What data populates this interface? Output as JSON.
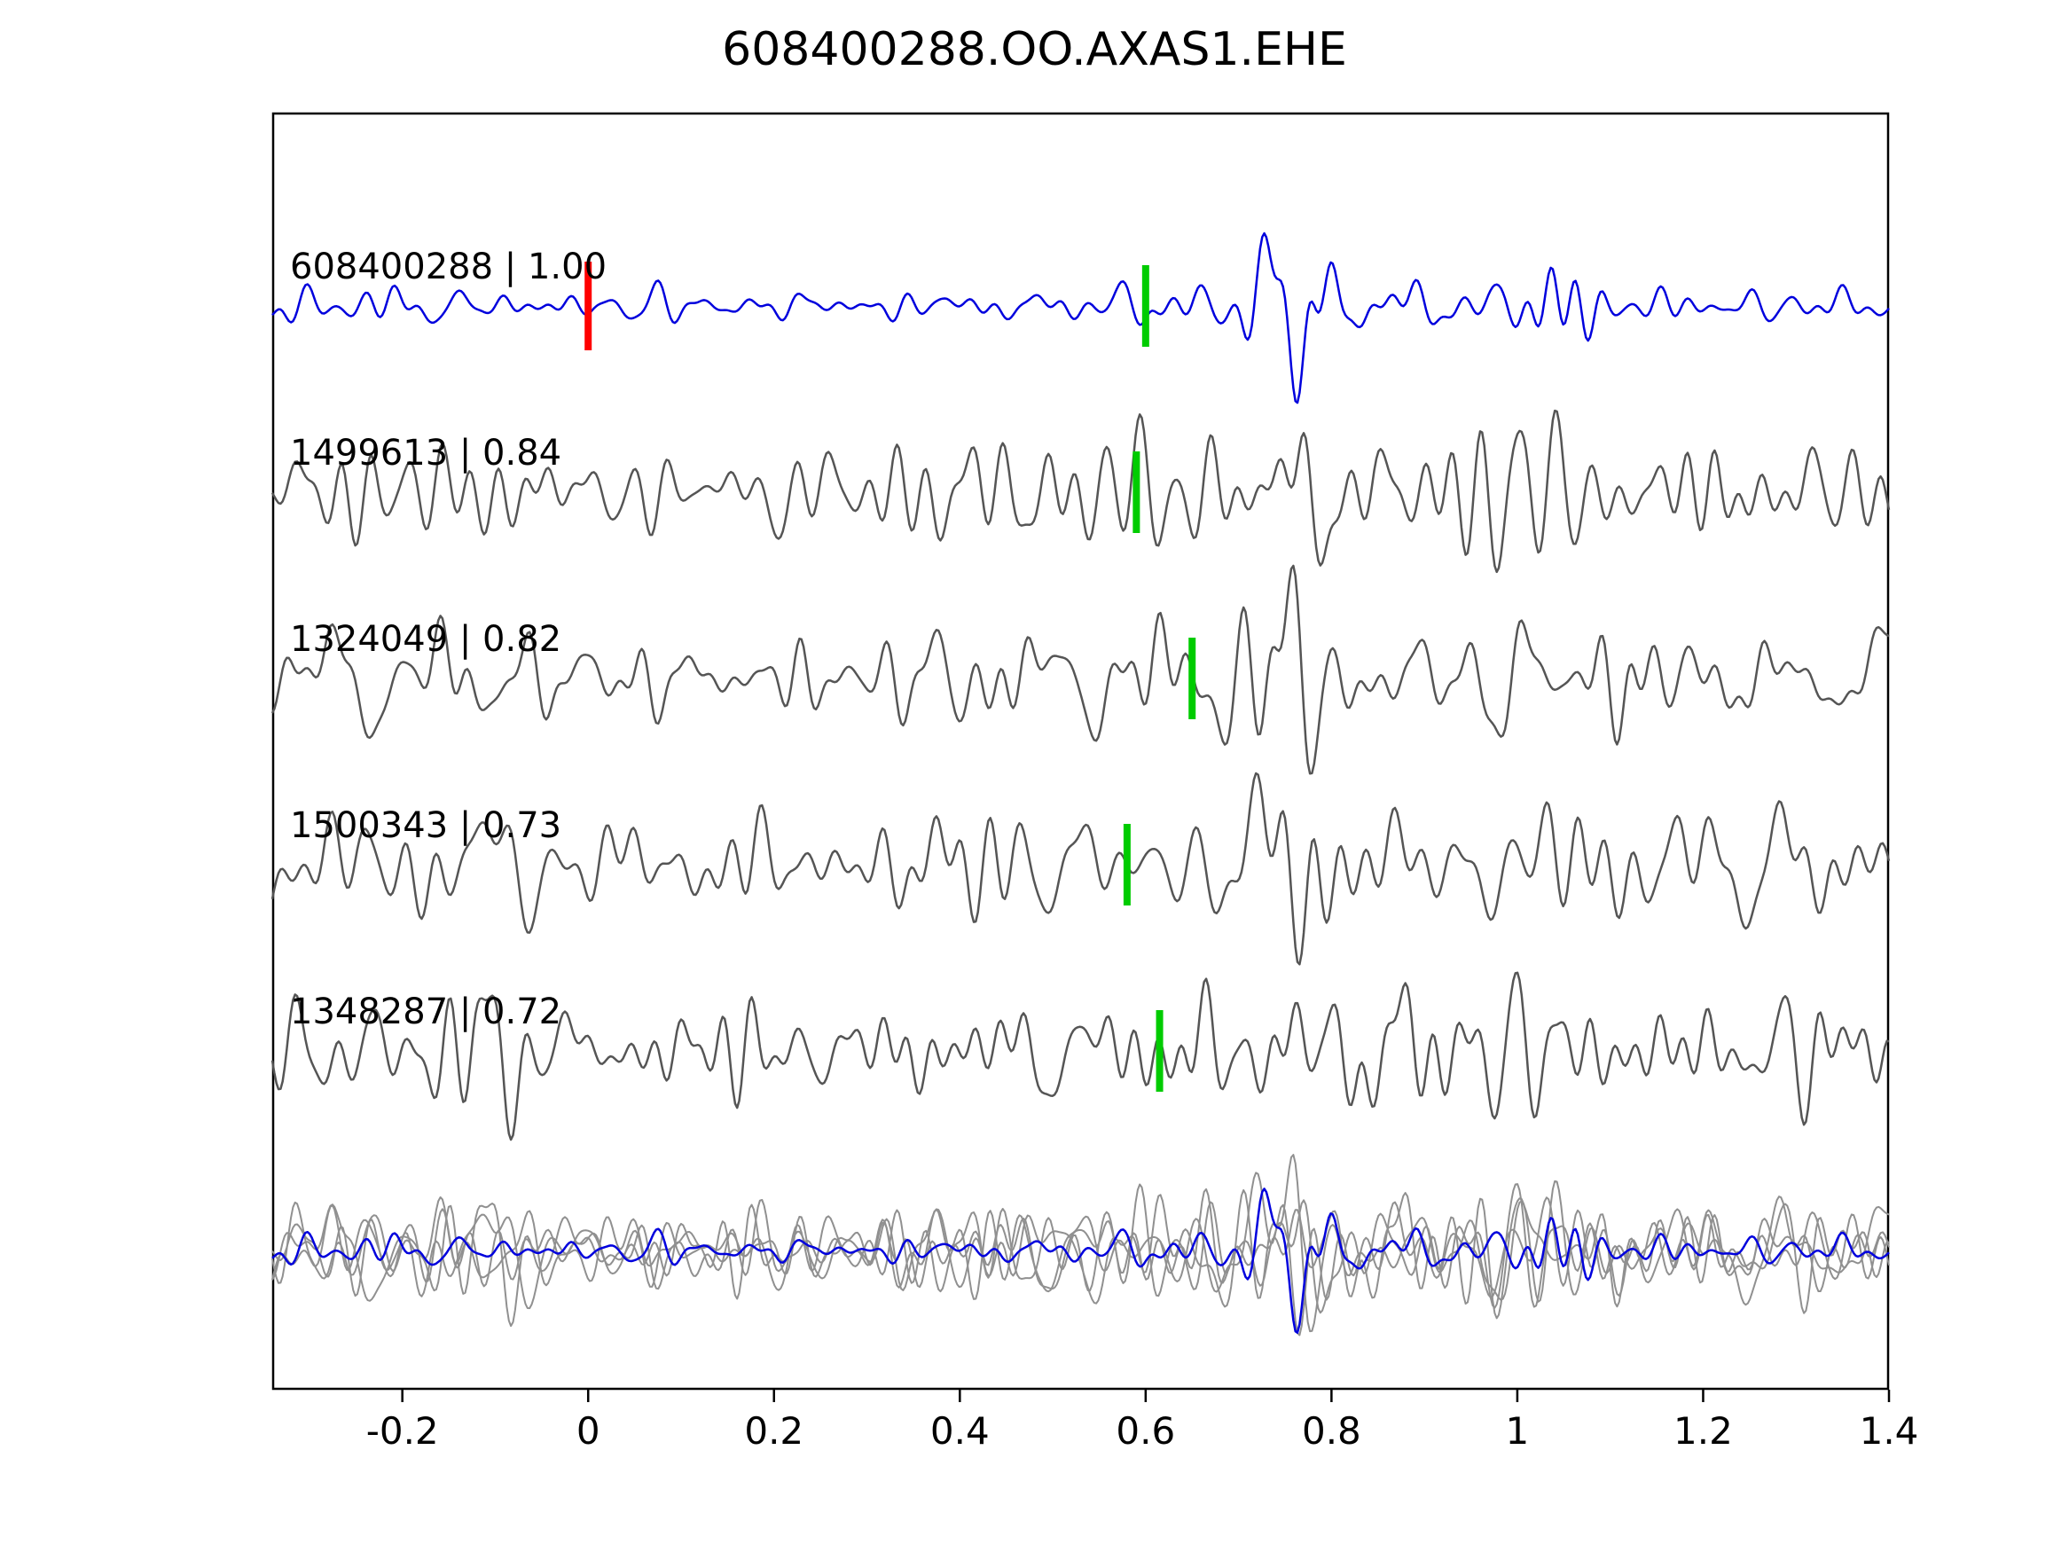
{
  "title": "608400288.OO.AXAS1.EHE",
  "chart_data": {
    "type": "line",
    "title": "608400288.OO.AXAS1.EHE",
    "subtitle": "",
    "xlabel": "",
    "ylabel": "",
    "grid": false,
    "legend": "none",
    "xlim": [
      -0.34,
      1.4
    ],
    "x_ticks": [
      {
        "v": -0.2,
        "label": "-0.2"
      },
      {
        "v": 0.0,
        "label": "0"
      },
      {
        "v": 0.2,
        "label": "0.2"
      },
      {
        "v": 0.4,
        "label": "0.4"
      },
      {
        "v": 0.6,
        "label": "0.6"
      },
      {
        "v": 0.8,
        "label": "0.8"
      },
      {
        "v": 1.0,
        "label": "1"
      },
      {
        "v": 1.2,
        "label": "1.2"
      },
      {
        "v": 1.4,
        "label": "1.4"
      }
    ],
    "colors": {
      "reference_trace": "#0000dd",
      "match_trace": "#555555",
      "overlay_gray": "#909090",
      "pick_marker": "#00cc00",
      "reference_pick_marker": "#ff0000",
      "axes_border": "#000000"
    },
    "traces": [
      {
        "id": "608400288",
        "correlation": "1.00",
        "label": "608400288 | 1.00",
        "color": "#0000dd",
        "pick_x": 0.6,
        "pick_color": "#00cc00",
        "ref_pick_x": 0.0,
        "ref_pick_color": "#ff0000",
        "seed": 911,
        "base_amp": 18,
        "bursts": [
          {
            "center": 0.78,
            "amp": 85,
            "sigma": 0.05
          },
          {
            "center": 1.05,
            "amp": 48,
            "sigma": 0.045
          }
        ]
      },
      {
        "id": "1499613",
        "correlation": "0.84",
        "label": "1499613 | 0.84",
        "color": "#555555",
        "pick_x": 0.59,
        "pick_color": "#00cc00",
        "seed": 223,
        "base_amp": 55,
        "bursts": [
          {
            "center": 0.77,
            "amp": 45,
            "sigma": 0.045
          },
          {
            "center": 1.03,
            "amp": 22,
            "sigma": 0.05
          }
        ]
      },
      {
        "id": "1324049",
        "correlation": "0.82",
        "label": "1324049 | 0.82",
        "color": "#555555",
        "pick_x": 0.65,
        "pick_color": "#00cc00",
        "seed": 337,
        "base_amp": 55,
        "bursts": [
          {
            "center": 0.78,
            "amp": 45,
            "sigma": 0.045
          },
          {
            "center": 1.05,
            "amp": 22,
            "sigma": 0.05
          }
        ]
      },
      {
        "id": "1500343",
        "correlation": "0.73",
        "label": "1500343 | 0.73",
        "color": "#555555",
        "pick_x": 0.58,
        "pick_color": "#00cc00",
        "seed": 449,
        "base_amp": 57,
        "bursts": [
          {
            "center": 0.77,
            "amp": 43,
            "sigma": 0.045
          },
          {
            "center": 1.02,
            "amp": 20,
            "sigma": 0.05
          }
        ]
      },
      {
        "id": "1348287",
        "correlation": "0.72",
        "label": "1348287 | 0.72",
        "color": "#555555",
        "pick_x": 0.615,
        "pick_color": "#00cc00",
        "seed": 557,
        "base_amp": 57,
        "bursts": [
          {
            "center": 0.78,
            "amp": 43,
            "sigma": 0.045
          },
          {
            "center": 1.04,
            "amp": 20,
            "sigma": 0.05
          }
        ]
      }
    ],
    "overlay": {
      "description": "all matched traces in gray with reference trace in blue on top",
      "gray_color": "#909090",
      "blue_color": "#0000dd",
      "amp_scale": 0.85
    }
  }
}
